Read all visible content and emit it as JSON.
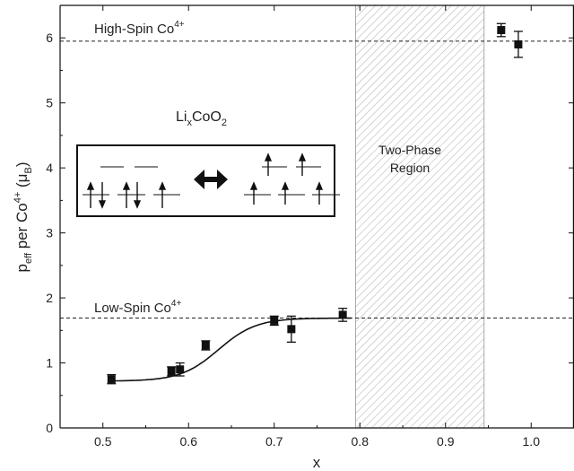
{
  "chart_data": {
    "type": "scatter",
    "title": "",
    "xlabel": "x",
    "ylabel": {
      "main": "p",
      "sub": "eff",
      "mid": " per Co",
      "sup": "4+",
      "unit": " (μ",
      "unit_sub": "B",
      "close": ")"
    },
    "xlim": [
      0.45,
      1.05
    ],
    "ylim": [
      0,
      6.5
    ],
    "xticks": [
      0.5,
      0.6,
      0.7,
      0.8,
      0.9,
      1.0
    ],
    "xtick_labels": [
      "0.5",
      "0.6",
      "0.7",
      "0.8",
      "0.9",
      "1.0"
    ],
    "yticks": [
      0,
      1,
      2,
      3,
      4,
      5,
      6
    ],
    "ytick_labels": [
      "0",
      "1",
      "2",
      "3",
      "4",
      "5",
      "6"
    ],
    "series": [
      {
        "marker": "square",
        "color": "#111111",
        "x": [
          0.51,
          0.58,
          0.59,
          0.62,
          0.7,
          0.72,
          0.78,
          0.965,
          0.985
        ],
        "y": [
          0.75,
          0.87,
          0.9,
          1.27,
          1.65,
          1.52,
          1.74,
          6.12,
          5.9
        ],
        "err": [
          0.07,
          0.07,
          0.1,
          0.07,
          0.07,
          0.2,
          0.1,
          0.1,
          0.2
        ]
      }
    ],
    "fit": {
      "x_start": 0.51,
      "x_end": 0.79,
      "y_low": 0.72,
      "y_high": 1.69,
      "x_mid": 0.635,
      "width": 0.022
    },
    "reference_lines": [
      {
        "y": 5.95,
        "label": "High-Spin Co",
        "sup": "4+"
      },
      {
        "y": 1.69,
        "label": "Low-Spin Co",
        "sup": "4+"
      }
    ],
    "shaded_region": {
      "x0": 0.795,
      "x1": 0.945,
      "label_line1": "Two-Phase",
      "label_line2": "Region"
    },
    "compound": {
      "a": "Li",
      "a_sub": "x",
      "b": "CoO",
      "b_sub": "2"
    }
  }
}
